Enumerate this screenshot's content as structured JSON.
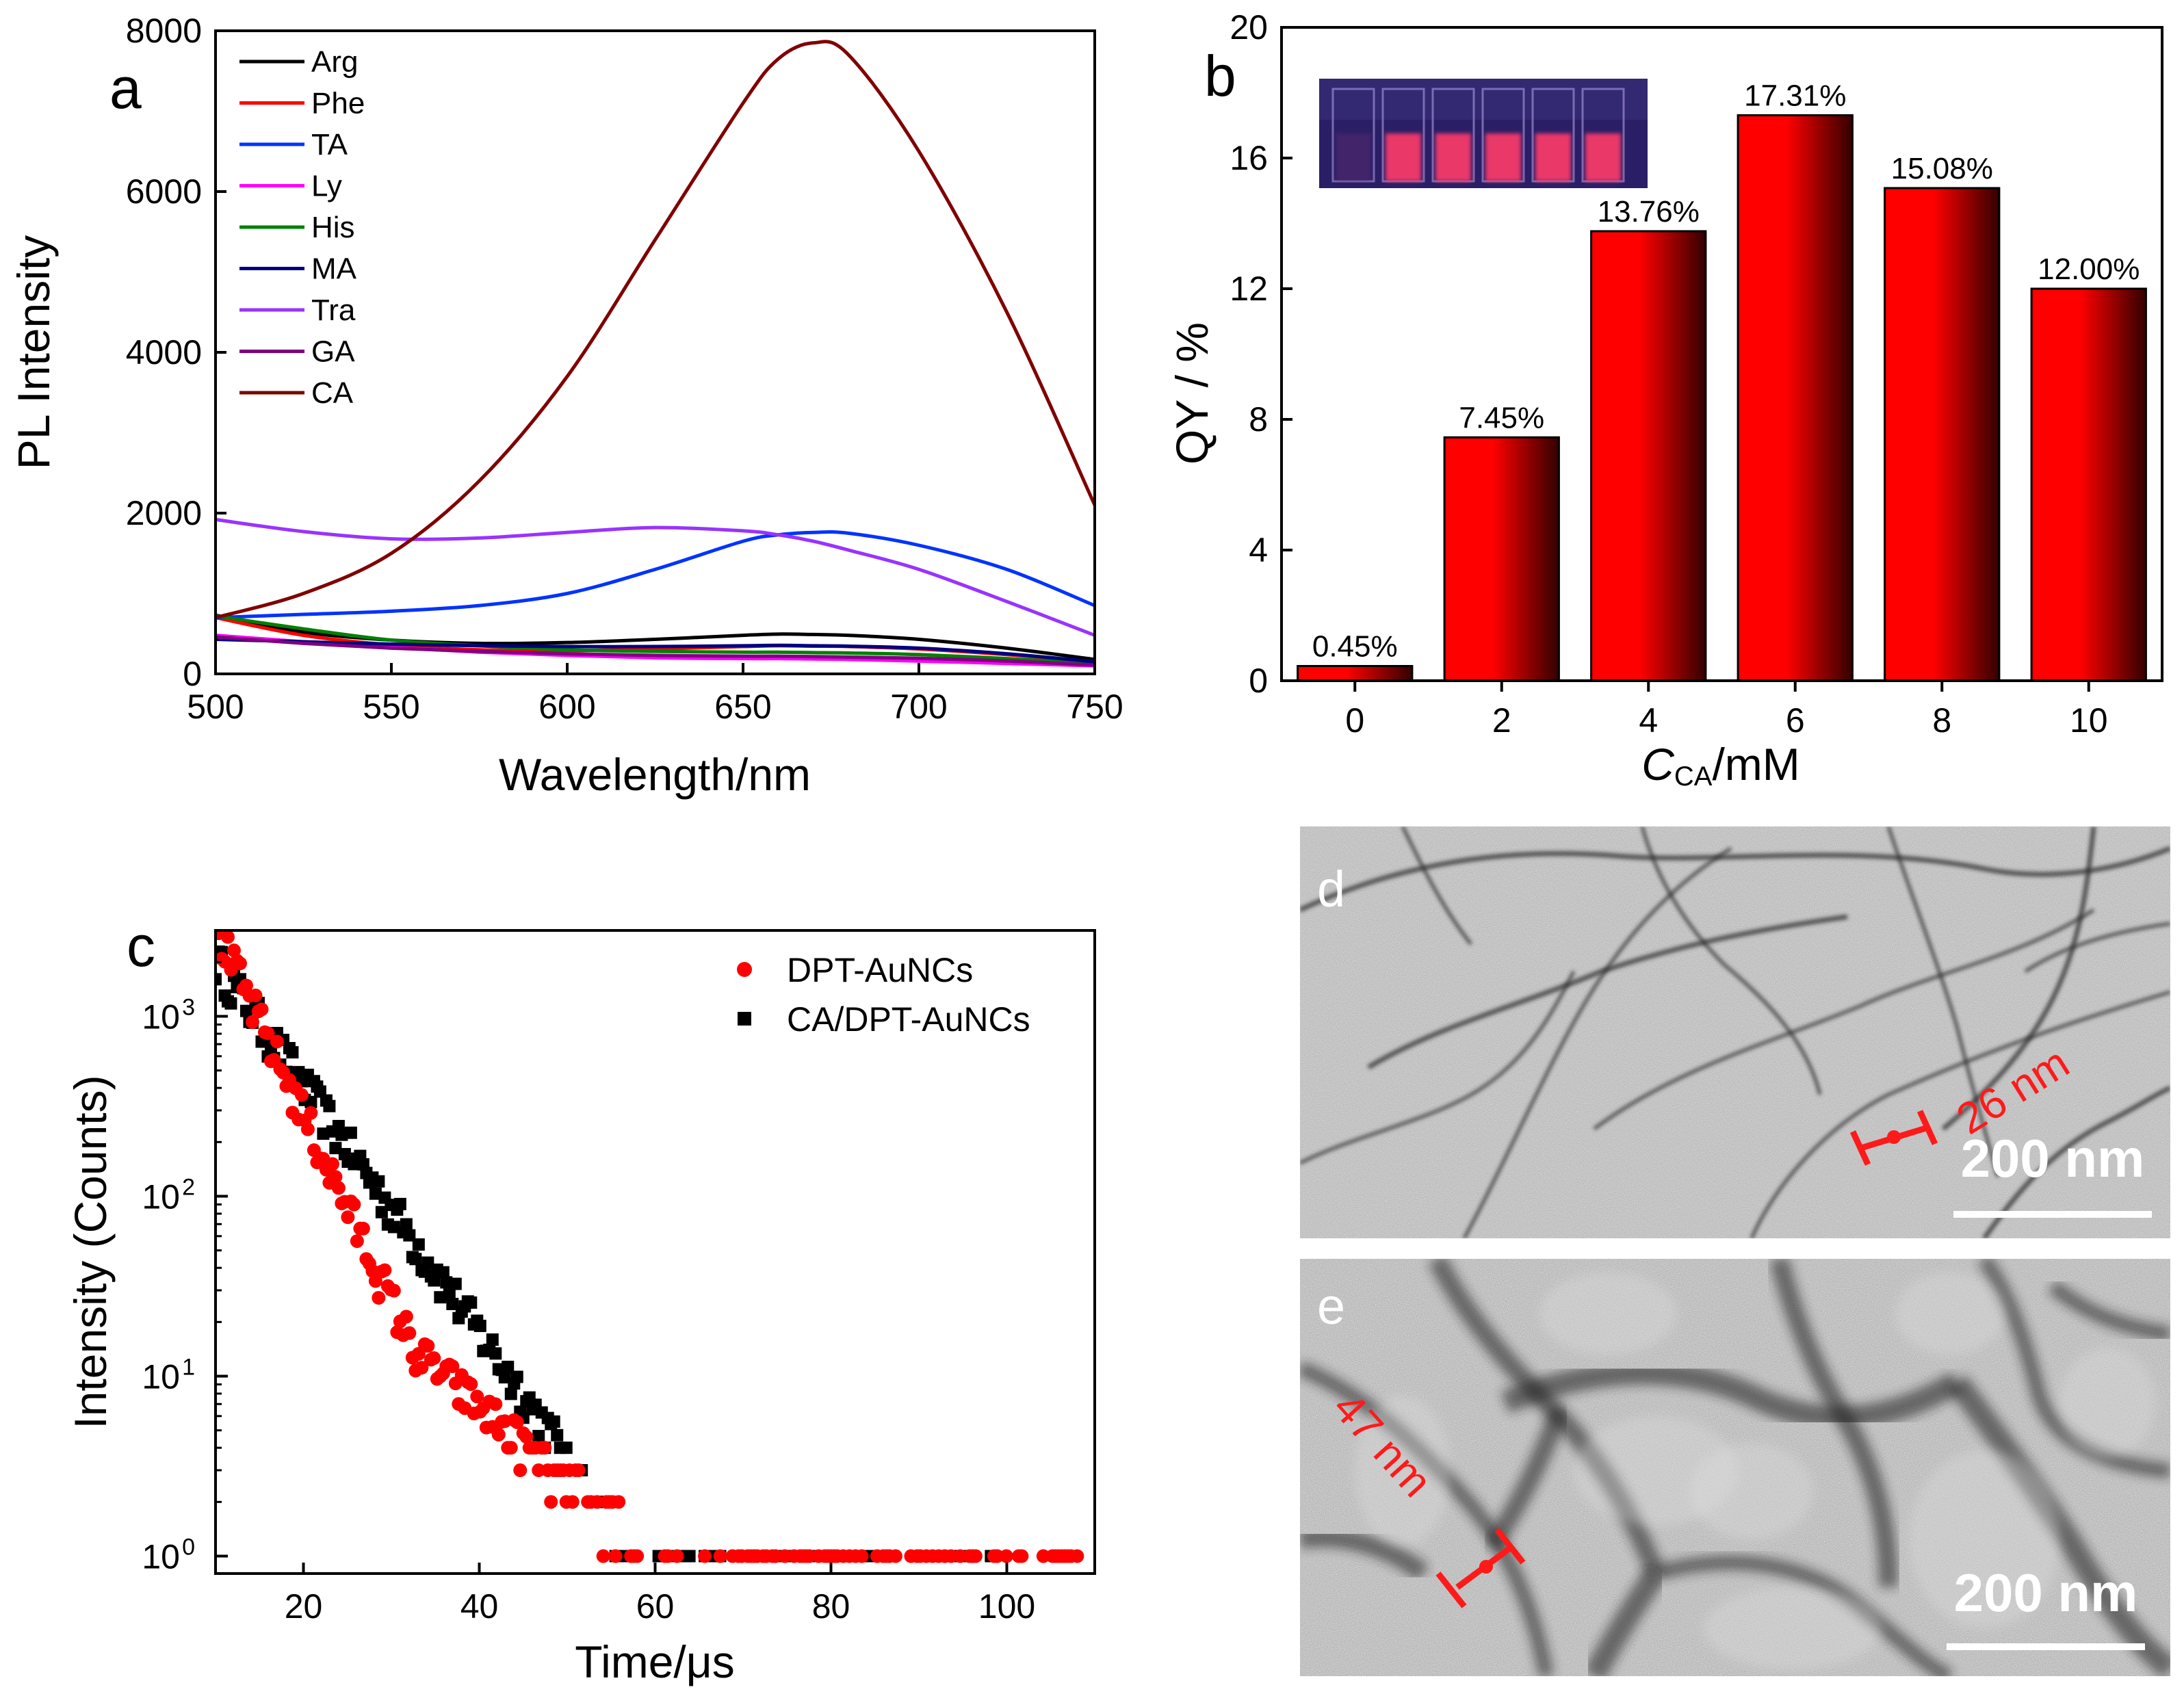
{
  "panels": {
    "a": "a",
    "b": "b",
    "c": "c",
    "d": "d",
    "e": "e"
  },
  "chart_data": [
    {
      "id": "a",
      "type": "line",
      "title": "",
      "xlabel": "Wavelength/nm",
      "ylabel": "PL Intensity",
      "xlim": [
        500,
        750
      ],
      "ylim": [
        0,
        8000
      ],
      "xticks": [
        500,
        550,
        600,
        650,
        700,
        750
      ],
      "yticks": [
        0,
        2000,
        4000,
        6000,
        8000
      ],
      "legend_position": "top-left",
      "x": [
        500,
        525,
        550,
        575,
        600,
        625,
        650,
        660,
        670,
        680,
        700,
        725,
        750
      ],
      "series": [
        {
          "name": "Arg",
          "color": "#000000",
          "values": [
            730,
            520,
            420,
            380,
            390,
            430,
            480,
            495,
            490,
            480,
            430,
            320,
            180
          ]
        },
        {
          "name": "Phe",
          "color": "#ff0000",
          "values": [
            700,
            480,
            360,
            300,
            290,
            310,
            340,
            350,
            345,
            340,
            310,
            240,
            150
          ]
        },
        {
          "name": "TA",
          "color": "#0033ff",
          "values": [
            700,
            740,
            780,
            850,
            1000,
            1300,
            1650,
            1730,
            1760,
            1750,
            1600,
            1300,
            850
          ]
        },
        {
          "name": "Ly",
          "color": "#ff00ff",
          "values": [
            480,
            400,
            330,
            270,
            230,
            200,
            190,
            190,
            185,
            180,
            160,
            130,
            100
          ]
        },
        {
          "name": "His",
          "color": "#008000",
          "values": [
            720,
            560,
            420,
            350,
            300,
            280,
            270,
            270,
            265,
            260,
            240,
            190,
            130
          ]
        },
        {
          "name": "MA",
          "color": "#000080",
          "values": [
            430,
            400,
            370,
            350,
            340,
            340,
            350,
            355,
            350,
            345,
            320,
            250,
            150
          ]
        },
        {
          "name": "Tra",
          "color": "#9933ff",
          "values": [
            1920,
            1770,
            1680,
            1690,
            1760,
            1820,
            1780,
            1730,
            1650,
            1540,
            1300,
            900,
            480
          ]
        },
        {
          "name": "GA",
          "color": "#800080",
          "values": [
            460,
            380,
            320,
            280,
            250,
            230,
            220,
            220,
            215,
            210,
            195,
            160,
            110
          ]
        },
        {
          "name": "CA",
          "color": "#800000",
          "values": [
            700,
            1000,
            1500,
            2400,
            3700,
            5400,
            7100,
            7650,
            7850,
            7700,
            6500,
            4500,
            2100
          ]
        }
      ]
    },
    {
      "id": "b",
      "type": "bar",
      "title": "",
      "xlabel_main": "C",
      "xlabel_sub": "CA",
      "xlabel_unit": "/mM",
      "ylabel": "QY / %",
      "ylim": [
        0,
        20
      ],
      "yticks": [
        0,
        4,
        8,
        12,
        16,
        20
      ],
      "categories": [
        "0",
        "2",
        "4",
        "6",
        "8",
        "10"
      ],
      "values": [
        0.45,
        7.45,
        13.76,
        17.31,
        15.08,
        12.0
      ],
      "data_labels": [
        "0.45%",
        "7.45%",
        "13.76%",
        "17.31%",
        "15.08%",
        "12.00%"
      ],
      "bar_color": "#ff0000",
      "bar_dark": "#330000",
      "inset": "photo of six cuvettes glowing red under UV light"
    },
    {
      "id": "c",
      "type": "scatter",
      "title": "",
      "xlabel": "Time/μs",
      "ylabel": "Intensity (Counts)",
      "xlim": [
        10,
        110
      ],
      "ylog": true,
      "ylim": [
        0.8,
        3000
      ],
      "xticks": [
        20,
        40,
        60,
        80,
        100
      ],
      "yticks": [
        1,
        10,
        100,
        1000
      ],
      "ytick_labels": [
        [
          "10",
          "0"
        ],
        [
          "10",
          "1"
        ],
        [
          "10",
          "2"
        ],
        [
          "10",
          "3"
        ]
      ],
      "legend_position": "top-right",
      "series": [
        {
          "name": "DPT-AuNCs",
          "color": "#ff0000",
          "marker": "circle",
          "decay_tau": 4.2,
          "start": 3000,
          "tail_end": 108
        },
        {
          "name": "CA/DPT-AuNCs",
          "color": "#000000",
          "marker": "square",
          "decay_tau": 6.3,
          "start": 2000,
          "tail_end": 100
        }
      ]
    }
  ],
  "tem": {
    "d": {
      "scale_bar": "200 nm",
      "measure": "26 nm"
    },
    "e": {
      "scale_bar": "200 nm",
      "measure": "47 nm"
    }
  }
}
